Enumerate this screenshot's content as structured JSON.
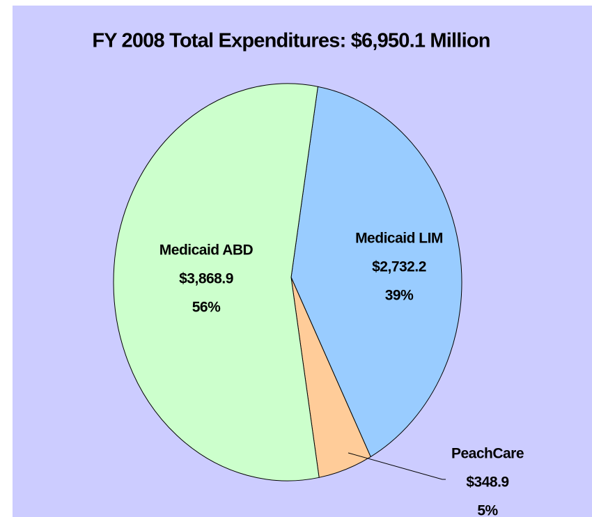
{
  "chart_data": {
    "type": "pie",
    "title": "FY 2008 Total Expenditures: $6,950.1 Million",
    "categories": [
      "Medicaid LIM",
      "PeachCare",
      "Medicaid ABD"
    ],
    "values": [
      2732.2,
      348.9,
      3868.9
    ],
    "value_labels": [
      "$2,732.2",
      "$348.9",
      "$3,868.9"
    ],
    "percent_labels": [
      "39%",
      "5%",
      "56%"
    ],
    "colors": [
      "#99ccff",
      "#ffcc99",
      "#ccffcc"
    ],
    "background": "#ccccff"
  }
}
